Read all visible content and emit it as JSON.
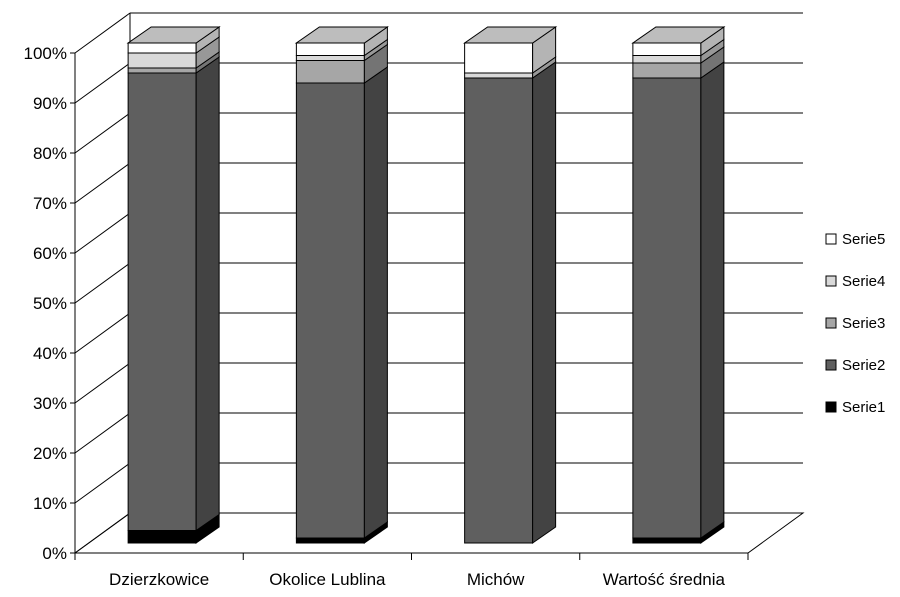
{
  "chart_data": {
    "type": "bar",
    "stacked": "percent",
    "three_d": true,
    "title": "",
    "xlabel": "",
    "ylabel": "",
    "ylim": [
      0,
      100
    ],
    "grid": true,
    "legend_position": "right",
    "categories": [
      "Dzierzkowice",
      "Okolice Lublina",
      "Michów",
      "Wartość średnia"
    ],
    "y_ticks": [
      "0%",
      "10%",
      "20%",
      "30%",
      "40%",
      "50%",
      "60%",
      "70%",
      "80%",
      "90%",
      "100%"
    ],
    "series": [
      {
        "name": "Serie1",
        "color": "#000000",
        "values": [
          2.5,
          1.0,
          0.0,
          1.0
        ]
      },
      {
        "name": "Serie2",
        "color": "#5f5f5f",
        "values": [
          91.5,
          91.0,
          93.0,
          92.0
        ]
      },
      {
        "name": "Serie3",
        "color": "#a6a6a6",
        "values": [
          1.0,
          4.5,
          0.0,
          3.0
        ]
      },
      {
        "name": "Serie4",
        "color": "#d9d9d9",
        "values": [
          3.0,
          1.0,
          1.0,
          1.5
        ]
      },
      {
        "name": "Serie5",
        "color": "#ffffff",
        "values": [
          2.0,
          2.5,
          6.0,
          2.5
        ]
      }
    ]
  }
}
